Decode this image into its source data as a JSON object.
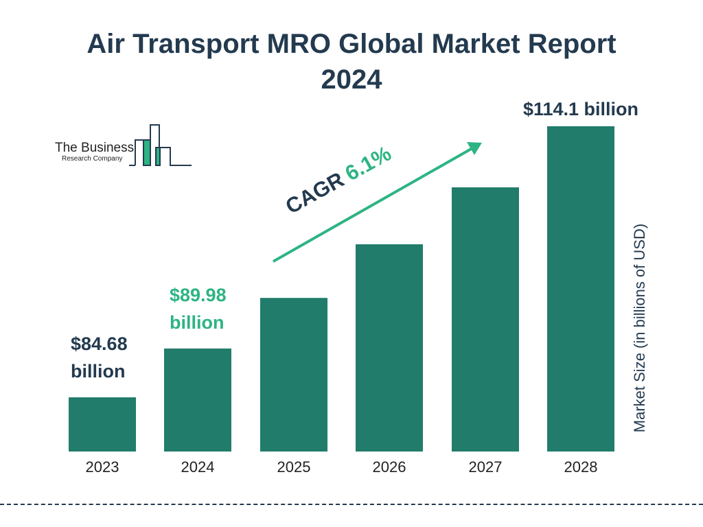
{
  "title_line1": "Air Transport MRO Global Market Report",
  "title_line2": "2024",
  "logo": {
    "line1": "The Business",
    "line2": "Research Company"
  },
  "colors": {
    "bar": "#217c6b",
    "text": "#233a4f",
    "accent": "#2db483"
  },
  "cagr": {
    "label": "CAGR",
    "value": "6.1%"
  },
  "chart_data": {
    "type": "bar",
    "title": "Air Transport MRO Global Market Report 2024",
    "categories": [
      "2023",
      "2024",
      "2025",
      "2026",
      "2027",
      "2028"
    ],
    "values": [
      84.68,
      89.98,
      95.47,
      101.29,
      107.47,
      114.1
    ],
    "data_labels": [
      {
        "category": "2023",
        "line1": "$84.68",
        "line2": "billion"
      },
      {
        "category": "2024",
        "line1": "$89.98",
        "line2": "billion"
      },
      {
        "category": "2028",
        "line1": "$114.1 billion",
        "line2": ""
      }
    ],
    "xlabel": "",
    "ylabel": "Market Size (in billions of USD)",
    "ylim": [
      78.8,
      114.1
    ],
    "grid": false,
    "legend": "none"
  }
}
